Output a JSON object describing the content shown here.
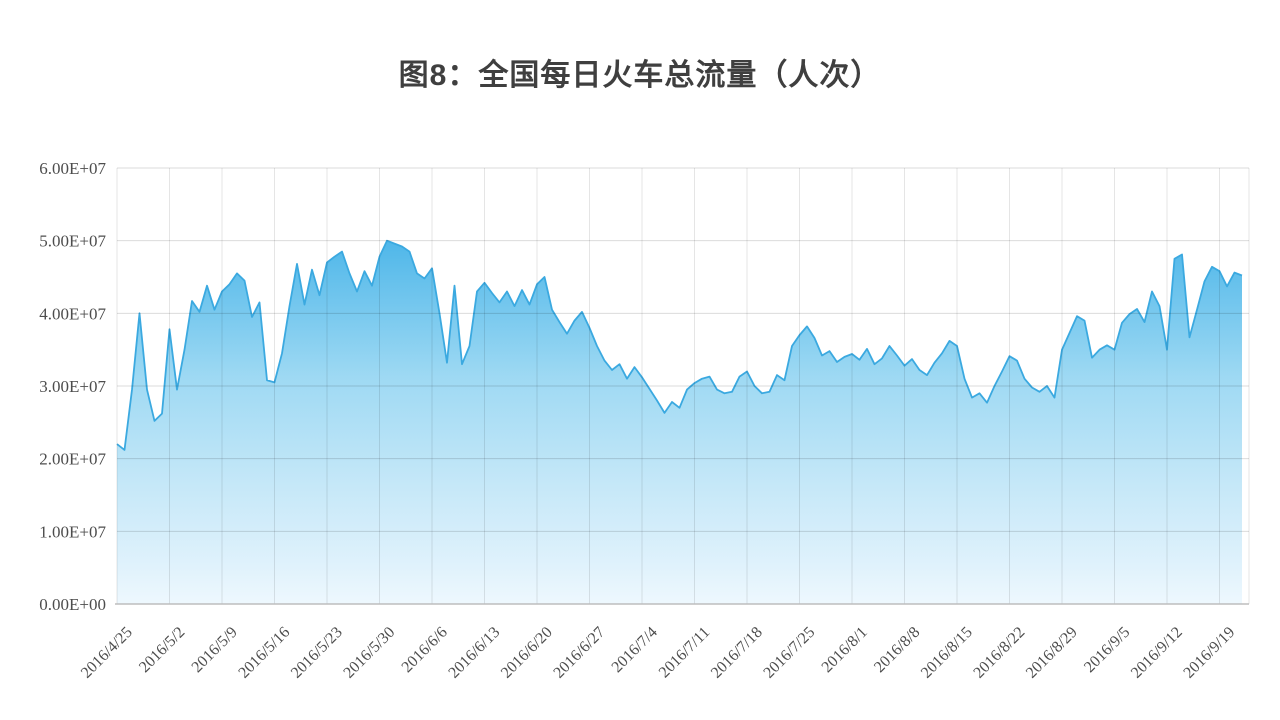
{
  "page": {
    "background": "#ffffff"
  },
  "chart": {
    "title": "图8：全国每日火车总流量（人次）"
  },
  "chart_data": {
    "type": "area",
    "title": "图8：全国每日火车总流量（人次）",
    "subtitle": "",
    "legend": "none",
    "grid": {
      "horizontal": true,
      "vertical": true,
      "color": "#d9d9d9"
    },
    "frequency": "daily",
    "x_start_date": "2016/4/25",
    "x_end_date": "2016/9/22",
    "x_tick_labels": [
      "2016/4/25",
      "2016/5/2",
      "2016/5/9",
      "2016/5/16",
      "2016/5/23",
      "2016/5/30",
      "2016/6/6",
      "2016/6/13",
      "2016/6/20",
      "2016/6/27",
      "2016/7/4",
      "2016/7/11",
      "2016/7/18",
      "2016/7/25",
      "2016/8/1",
      "2016/8/8",
      "2016/8/15",
      "2016/8/22",
      "2016/8/29",
      "2016/9/5",
      "2016/9/12",
      "2016/9/19"
    ],
    "y_axis": {
      "min": 0,
      "max": 60000000,
      "tick_interval": 10000000,
      "tick_labels": [
        "0.00E+00",
        "1.00E+07",
        "2.00E+07",
        "3.00E+07",
        "4.00E+07",
        "5.00E+07",
        "6.00E+07"
      ]
    },
    "unit": "人次 (daily person-trips); values_e7 are in units of 1.0E+07",
    "values_e7": [
      2.2,
      2.12,
      2.95,
      4.0,
      2.95,
      2.52,
      2.62,
      3.78,
      2.95,
      3.5,
      4.17,
      4.02,
      4.38,
      4.05,
      4.3,
      4.4,
      4.55,
      4.45,
      3.95,
      4.15,
      3.08,
      3.05,
      3.45,
      4.1,
      4.68,
      4.12,
      4.6,
      4.25,
      4.7,
      4.78,
      4.85,
      4.55,
      4.3,
      4.58,
      4.38,
      4.78,
      5.0,
      4.96,
      4.92,
      4.85,
      4.55,
      4.48,
      4.62,
      4.0,
      3.32,
      4.38,
      3.3,
      3.55,
      4.3,
      4.42,
      4.28,
      4.15,
      4.3,
      4.1,
      4.32,
      4.12,
      4.4,
      4.5,
      4.05,
      3.88,
      3.72,
      3.9,
      4.02,
      3.8,
      3.55,
      3.35,
      3.22,
      3.3,
      3.1,
      3.26,
      3.12,
      2.96,
      2.8,
      2.63,
      2.78,
      2.7,
      2.95,
      3.04,
      3.1,
      3.13,
      2.95,
      2.9,
      2.92,
      3.13,
      3.2,
      3.0,
      2.9,
      2.92,
      3.15,
      3.08,
      3.55,
      3.7,
      3.82,
      3.66,
      3.42,
      3.48,
      3.33,
      3.4,
      3.44,
      3.36,
      3.51,
      3.3,
      3.38,
      3.55,
      3.42,
      3.28,
      3.37,
      3.22,
      3.15,
      3.32,
      3.45,
      3.62,
      3.55,
      3.1,
      2.84,
      2.9,
      2.77,
      3.0,
      3.2,
      3.41,
      3.35,
      3.1,
      2.98,
      2.92,
      3.0,
      2.84,
      3.5,
      3.73,
      3.96,
      3.9,
      3.39,
      3.5,
      3.56,
      3.5,
      3.87,
      3.99,
      4.06,
      3.88,
      4.3,
      4.1,
      3.5,
      4.75,
      4.81,
      3.67,
      4.05,
      4.44,
      4.64,
      4.58,
      4.37,
      4.56,
      4.52
    ],
    "colors": {
      "area_gradient_top": "#4db6e9",
      "area_gradient_mid": "#9ed9f3",
      "area_gradient_bottom": "#eef8fe",
      "line": "#3ba9e0",
      "gridline": "#d9d9d9",
      "axis_line": "#bdbdbd",
      "axis_text": "#4d4d4d",
      "title_text": "#3f3f3f"
    }
  }
}
